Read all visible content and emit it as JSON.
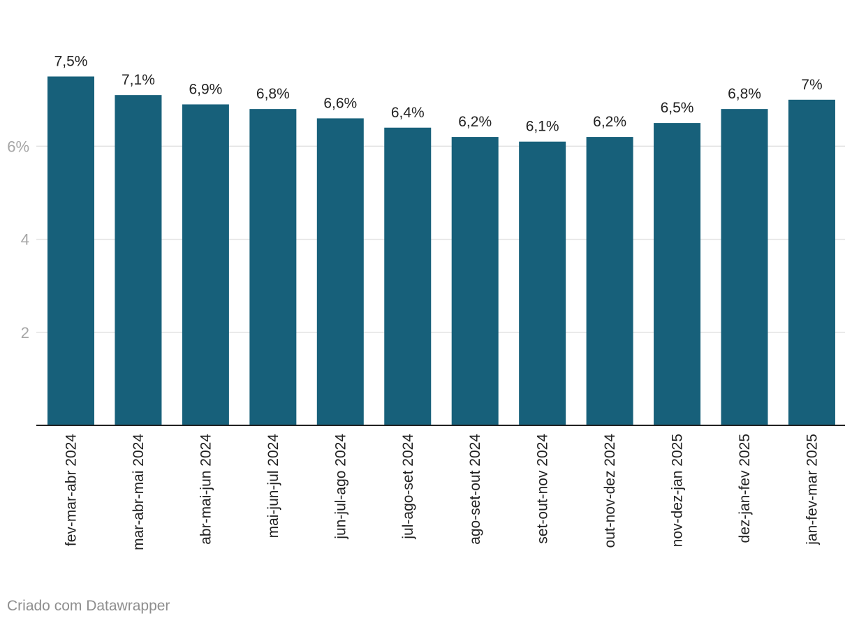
{
  "chart_data": {
    "type": "bar",
    "categories": [
      "fev-mar-abr 2024",
      "mar-abr-mai 2024",
      "abr-mai-jun 2024",
      "mai-jun-jul 2024",
      "jun-jul-ago 2024",
      "jul-ago-set 2024",
      "ago-set-out 2024",
      "set-out-nov 2024",
      "out-nov-dez 2024",
      "nov-dez-jan 2025",
      "dez-jan-fev 2025",
      "jan-fev-mar 2025"
    ],
    "values": [
      7.5,
      7.1,
      6.9,
      6.8,
      6.6,
      6.4,
      6.2,
      6.1,
      6.2,
      6.5,
      6.8,
      7.0
    ],
    "value_labels": [
      "7,5%",
      "7,1%",
      "6,9%",
      "6,8%",
      "6,6%",
      "6,4%",
      "6,2%",
      "6,1%",
      "6,2%",
      "6,5%",
      "6,8%",
      "7%"
    ],
    "y_ticks": [
      {
        "value": 2,
        "label": "2"
      },
      {
        "value": 4,
        "label": "4"
      },
      {
        "value": 6,
        "label": "6%"
      }
    ],
    "ylim": [
      0,
      8
    ],
    "grid": true,
    "title": "",
    "xlabel": "",
    "ylabel": "",
    "colors": {
      "bar": "#17607a",
      "grid": "#e2e2e2",
      "axis": "#222222",
      "tick_text": "#a6a6a6",
      "label_text": "#222222"
    }
  },
  "footer": {
    "credit": "Criado com Datawrapper"
  }
}
